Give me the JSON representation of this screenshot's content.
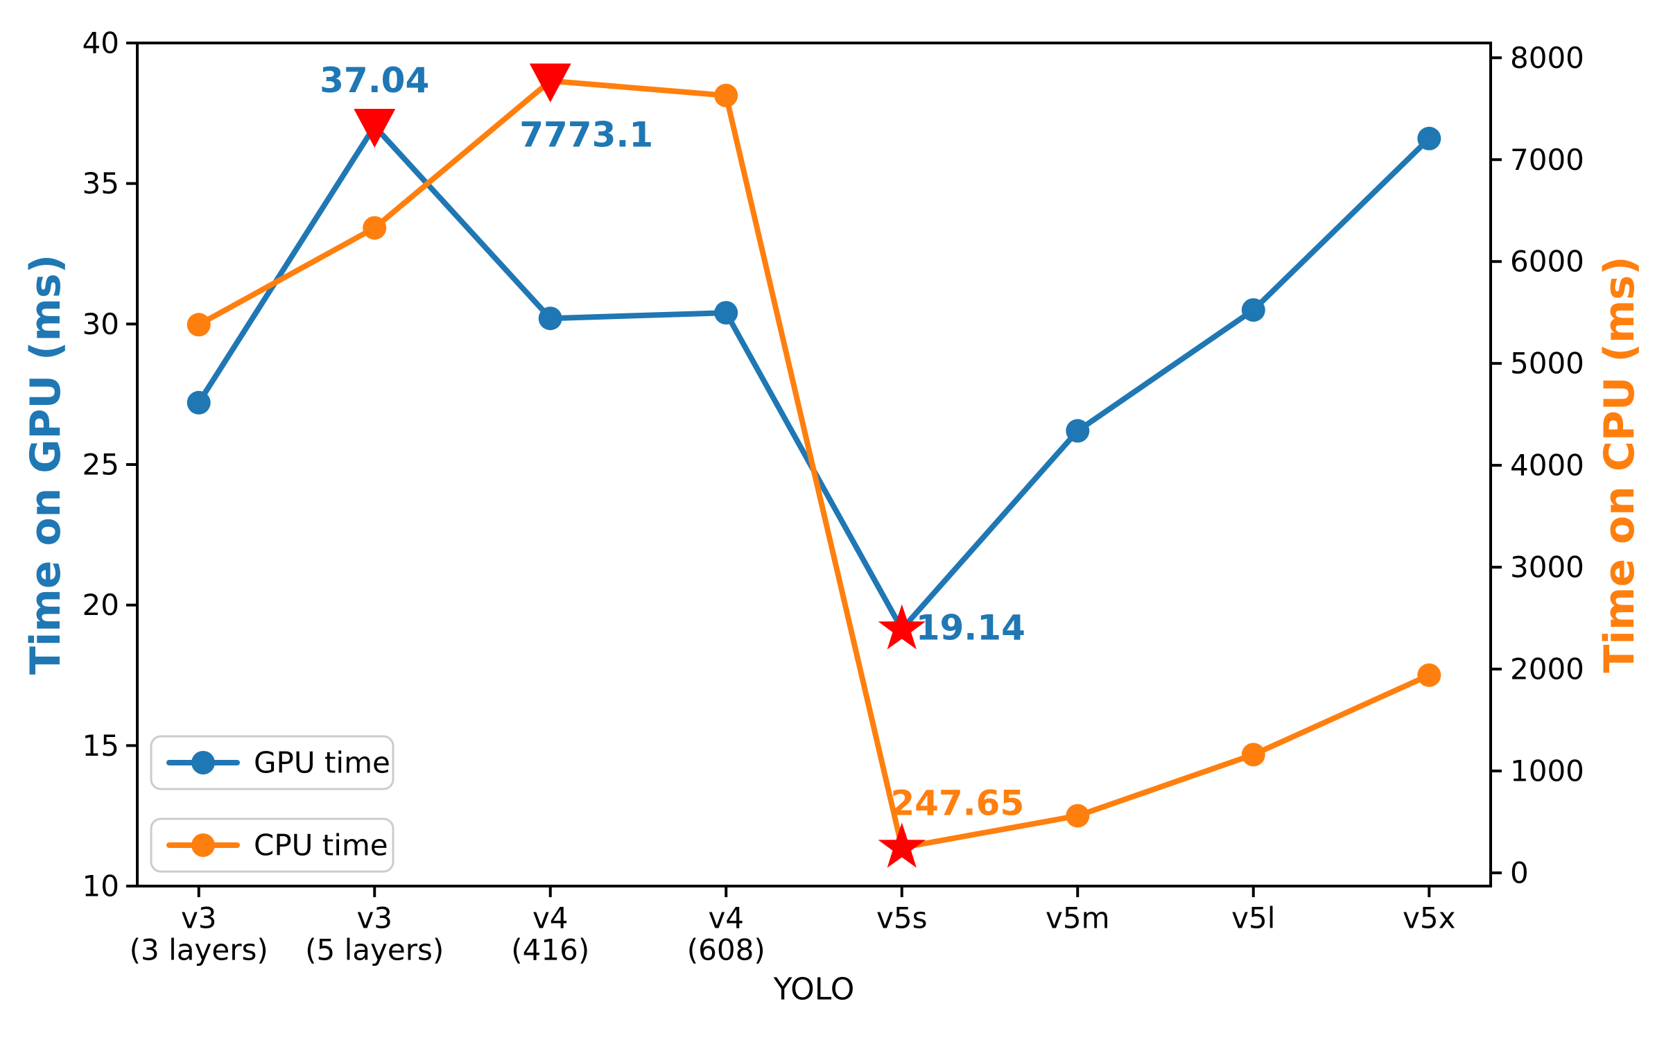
{
  "chart_data": {
    "type": "line",
    "title": "",
    "xlabel": "YOLO",
    "ylabel_left": "Time on GPU (ms)",
    "ylabel_right": "Time on CPU (ms)",
    "categories": [
      {
        "lines": [
          "v3",
          "(3 layers)"
        ]
      },
      {
        "lines": [
          "v3",
          "(5 layers)"
        ]
      },
      {
        "lines": [
          "v4",
          "(416)"
        ]
      },
      {
        "lines": [
          "v4",
          "(608)"
        ]
      },
      {
        "lines": [
          "v5s"
        ]
      },
      {
        "lines": [
          "v5m"
        ]
      },
      {
        "lines": [
          "v5l"
        ]
      },
      {
        "lines": [
          "v5x"
        ]
      }
    ],
    "series": [
      {
        "name": "GPU time",
        "axis": "left",
        "color": "#1f77b4",
        "values": [
          27.2,
          37.04,
          30.2,
          30.4,
          19.14,
          26.2,
          30.5,
          36.6
        ]
      },
      {
        "name": "CPU time",
        "axis": "right",
        "color": "#ff7f0e",
        "values": [
          5380,
          6330,
          7773.1,
          7630,
          247.65,
          560,
          1160,
          1940
        ]
      }
    ],
    "legend": [
      {
        "label": "GPU time"
      },
      {
        "label": "CPU time"
      }
    ],
    "yticks_left": [
      10,
      15,
      20,
      25,
      30,
      35,
      40
    ],
    "yticks_right": [
      0,
      1000,
      2000,
      3000,
      4000,
      5000,
      6000,
      7000,
      8000
    ],
    "ylim_left": [
      10,
      40
    ],
    "ylim_right": [
      -130,
      8145
    ],
    "grid": false,
    "legend_position": "lower-left",
    "highlight_color": "#ff0000",
    "axis_color": "#000000",
    "annotations": [
      {
        "text": "37.04",
        "series": 0,
        "index": 1,
        "marker": "triangle-down",
        "color": "#1f77b4",
        "offset": [
          0,
          -66
        ]
      },
      {
        "text": "7773.1",
        "series": 1,
        "index": 2,
        "marker": "triangle-down",
        "color": "#1f77b4",
        "offset": [
          52,
          78
        ]
      },
      {
        "text": "19.14",
        "series": 0,
        "index": 4,
        "marker": "star",
        "color": "#1f77b4",
        "offset": [
          99,
          -2
        ]
      },
      {
        "text": "247.65",
        "series": 1,
        "index": 4,
        "marker": "star",
        "color": "#ff7f0e",
        "offset": [
          80,
          -64
        ]
      }
    ]
  }
}
